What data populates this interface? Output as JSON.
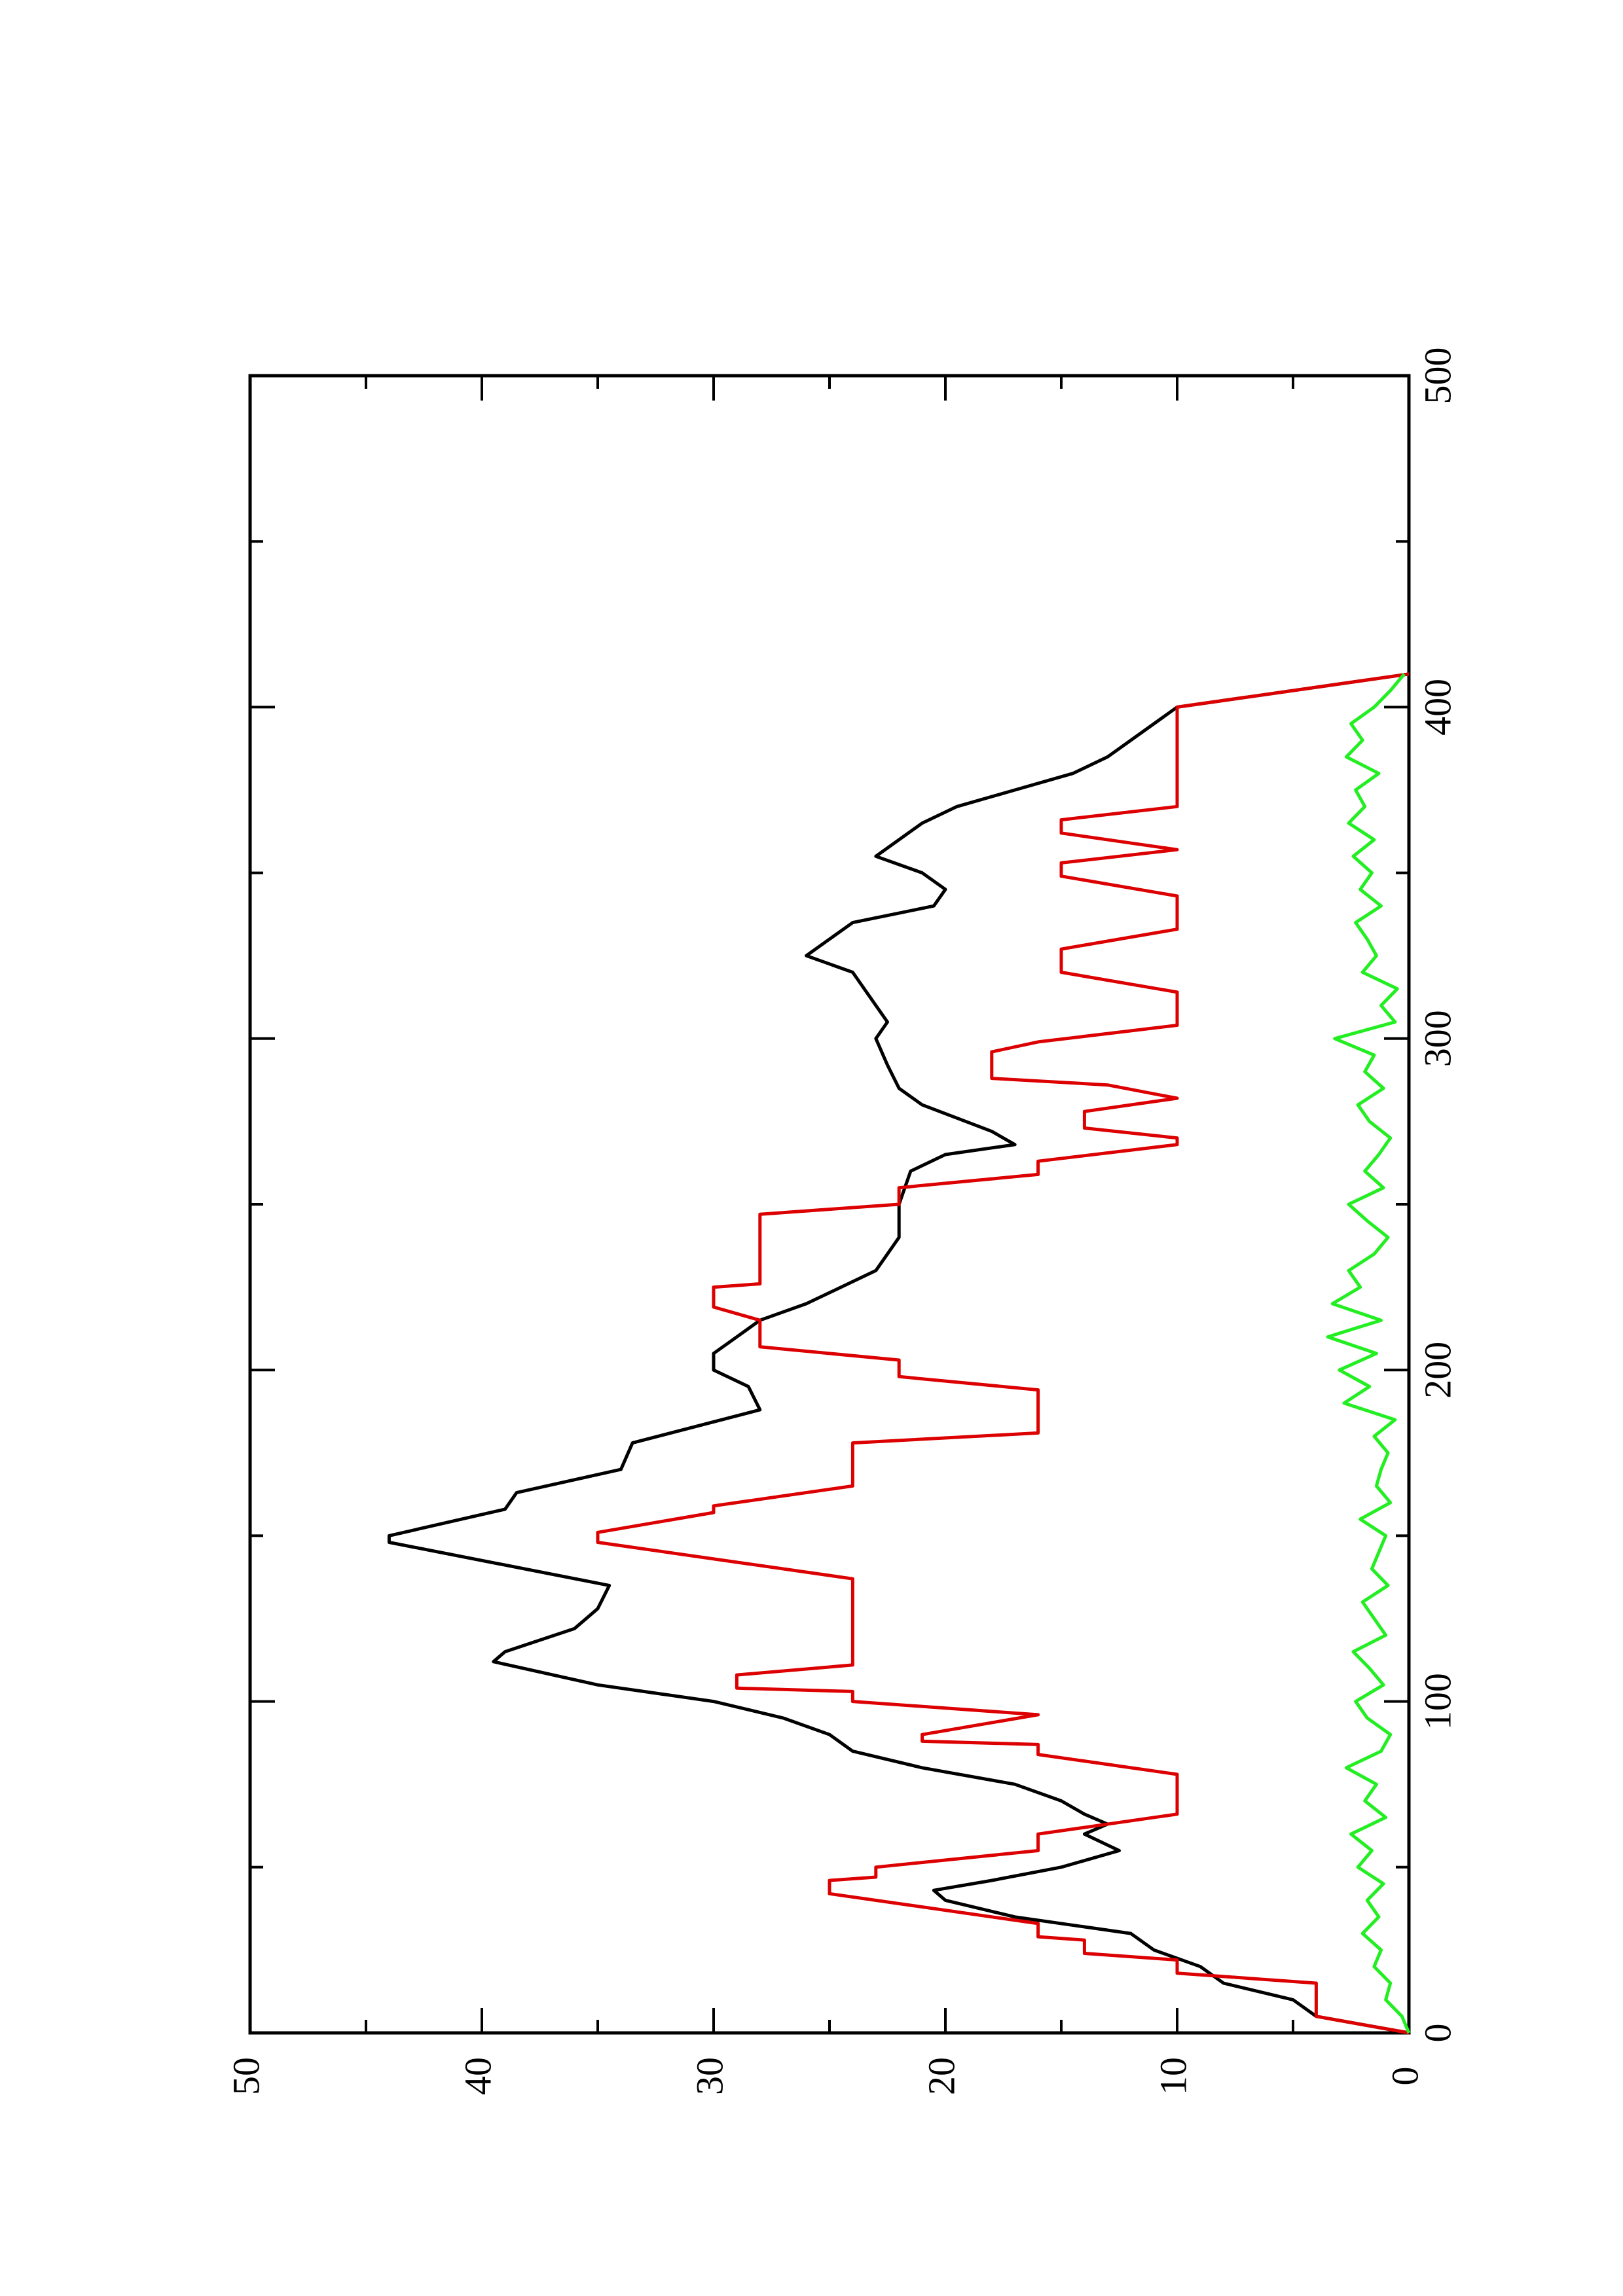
{
  "chart_data": {
    "type": "line",
    "xlim": [
      0,
      500
    ],
    "ylim": [
      0,
      50
    ],
    "xticks": [
      0,
      100,
      200,
      300,
      400,
      500
    ],
    "yticks": [
      0,
      10,
      20,
      30,
      40,
      50
    ],
    "xminorticks": [
      50,
      150,
      250,
      350,
      450
    ],
    "yminorticks": [
      5,
      15,
      25,
      35,
      45
    ],
    "series": [
      {
        "color": "#000000",
        "x": [
          0,
          5,
          10,
          15,
          20,
          25,
          30,
          35,
          40,
          43,
          46,
          50,
          55,
          60,
          63,
          66,
          70,
          75,
          80,
          85,
          90,
          95,
          100,
          105,
          112,
          115,
          122,
          128,
          135,
          148,
          150,
          158,
          163,
          170,
          178,
          188,
          195,
          200,
          205,
          210,
          215,
          220,
          230,
          240,
          250,
          260,
          265,
          268,
          272,
          280,
          285,
          292,
          300,
          305,
          310,
          320,
          325,
          330,
          335,
          340,
          345,
          350,
          355,
          365,
          370,
          375,
          380,
          385,
          400,
          410
        ],
        "values": [
          0,
          4,
          5,
          8,
          9,
          11,
          12,
          17,
          20,
          20.5,
          18,
          15,
          12.5,
          14,
          13,
          14,
          15,
          17,
          21,
          24,
          25,
          27,
          30,
          35,
          39.5,
          39,
          36,
          35,
          34.5,
          44,
          44,
          39,
          38.5,
          34,
          33.5,
          28,
          28.5,
          30,
          30,
          29,
          28,
          26,
          23,
          22,
          22,
          21.5,
          20,
          17,
          18,
          21,
          22,
          22.5,
          23,
          22.5,
          23,
          24,
          26,
          25,
          24,
          20.5,
          20,
          21,
          23,
          21,
          19.5,
          17,
          14.5,
          13,
          10,
          0
        ]
      },
      {
        "color": "#dd0000",
        "x": [
          0,
          5,
          15,
          18,
          22,
          24,
          28,
          29,
          33,
          42,
          46,
          47,
          50,
          55,
          60,
          66,
          78,
          84,
          87,
          88,
          90,
          96,
          100,
          103,
          104,
          108,
          111,
          123,
          137,
          148,
          151,
          157,
          159,
          165,
          178,
          181,
          194,
          198,
          203,
          207,
          215,
          219,
          225,
          226,
          247,
          250,
          255,
          259,
          263,
          268,
          270,
          273,
          278,
          282,
          286,
          288,
          296,
          299,
          304,
          314,
          320,
          327,
          333,
          343,
          349,
          353,
          357,
          362,
          366,
          370,
          400,
          410
        ],
        "values": [
          0,
          4,
          4,
          10,
          10,
          14,
          14,
          16,
          16,
          25,
          25,
          23,
          23,
          16,
          16,
          10,
          10,
          16,
          16,
          21,
          21,
          16,
          24,
          24,
          29,
          29,
          24,
          24,
          24,
          35,
          35,
          30,
          30,
          24,
          24,
          16,
          16,
          22,
          22,
          28,
          28,
          30,
          30,
          28,
          28,
          22,
          22,
          16,
          16,
          10,
          10,
          14,
          14,
          10,
          13,
          18,
          18,
          16,
          10,
          10,
          15,
          15,
          10,
          10,
          15,
          15,
          10,
          15,
          15,
          10,
          10,
          0
        ]
      },
      {
        "color": "#22ee22",
        "x": [
          0,
          5,
          10,
          15,
          20,
          25,
          30,
          35,
          40,
          45,
          50,
          55,
          60,
          65,
          70,
          75,
          80,
          85,
          90,
          95,
          100,
          105,
          110,
          115,
          120,
          125,
          130,
          135,
          140,
          145,
          150,
          155,
          160,
          165,
          170,
          175,
          180,
          185,
          190,
          195,
          200,
          205,
          210,
          215,
          220,
          225,
          230,
          235,
          240,
          245,
          250,
          255,
          260,
          265,
          270,
          275,
          280,
          285,
          290,
          295,
          300,
          305,
          310,
          315,
          320,
          325,
          330,
          335,
          340,
          345,
          350,
          355,
          360,
          365,
          370,
          375,
          380,
          385,
          390,
          395,
          400,
          405,
          410
        ],
        "values": [
          0,
          0.3,
          1,
          0.8,
          1.5,
          1.2,
          2,
          1.3,
          1.8,
          1.1,
          2.2,
          1.6,
          2.5,
          1,
          1.9,
          1.4,
          2.7,
          1.2,
          0.8,
          1.8,
          2.3,
          1.1,
          1.7,
          2.4,
          1,
          1.5,
          2,
          0.9,
          1.6,
          1.3,
          1,
          2.1,
          0.8,
          1.4,
          1.2,
          0.9,
          1.5,
          0.6,
          2.8,
          1.7,
          3,
          1.4,
          3.5,
          1.2,
          3.3,
          2.1,
          2.6,
          1.5,
          0.9,
          1.8,
          2.6,
          1.1,
          1.9,
          1.3,
          0.8,
          1.7,
          2.2,
          1.1,
          1.9,
          1.5,
          3.2,
          0.6,
          1.2,
          0.5,
          2,
          1.4,
          1.8,
          2.3,
          1.2,
          2.1,
          1.6,
          2.4,
          1.5,
          2.6,
          1.9,
          2.3,
          1.3,
          2.7,
          2,
          2.5,
          1.5,
          0.8,
          0.2
        ]
      }
    ]
  }
}
